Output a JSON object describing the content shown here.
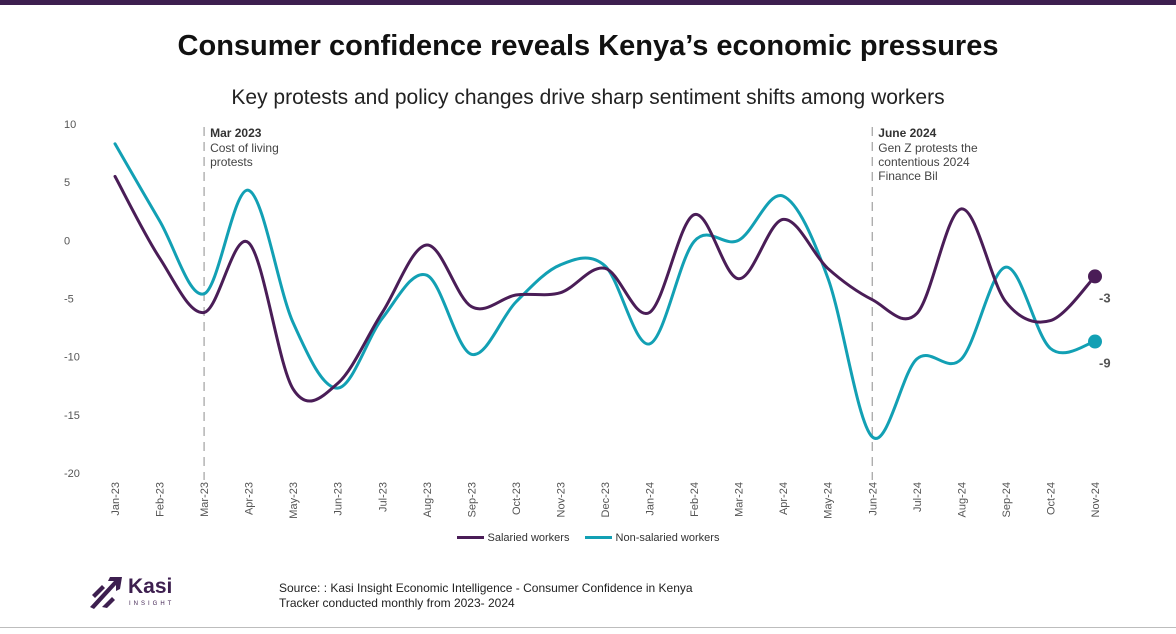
{
  "header": {
    "title": "Consumer confidence reveals Kenya’s economic pressures",
    "subtitle": "Key protests and policy changes drive sharp sentiment shifts among workers"
  },
  "chart_data": {
    "type": "line",
    "title": "Consumer confidence reveals Kenya’s economic pressures",
    "subtitle": "Key protests and policy changes drive sharp sentiment shifts among workers",
    "xlabel": "",
    "ylabel": "",
    "ylim": [
      -20,
      10
    ],
    "yticks": [
      10,
      5,
      0,
      -5,
      -10,
      -15,
      -20
    ],
    "categories": [
      "Jan-23",
      "Feb-23",
      "Mar-23",
      "Apr-23",
      "May-23",
      "Jun-23",
      "Jul-23",
      "Aug-23",
      "Sep-23",
      "Oct-23",
      "Nov-23",
      "Dec-23",
      "Jan-24",
      "Feb-24",
      "Mar-24",
      "Apr-24",
      "May-24",
      "Jun-24",
      "Jul-24",
      "Aug-24",
      "Sep-24",
      "Oct-24",
      "Nov-24"
    ],
    "series": [
      {
        "name": "Salaried workers",
        "color": "#4a1d57",
        "values": [
          5.5,
          -1.5,
          -6.2,
          -0.2,
          -12.8,
          -12.3,
          -6.2,
          -0.4,
          -5.7,
          -4.7,
          -4.5,
          -2.4,
          -6.2,
          2.2,
          -3.3,
          1.8,
          -2.4,
          -5.1,
          -6.3,
          2.7,
          -5.3,
          -6.9,
          -3.1
        ],
        "end_label": "-3"
      },
      {
        "name": "Non-salaried workers",
        "color": "#12a0b4",
        "values": [
          8.3,
          1.7,
          -4.6,
          4.3,
          -7.1,
          -12.7,
          -6.7,
          -3.0,
          -9.8,
          -5.3,
          -2.1,
          -2.2,
          -8.9,
          -0.1,
          0.0,
          3.8,
          -3.2,
          -16.9,
          -10.2,
          -10.2,
          -2.3,
          -9.3,
          -8.7
        ],
        "end_label": "-9"
      }
    ],
    "annotations": [
      {
        "category": "Mar-23",
        "title": "Mar 2023",
        "lines": [
          "Cost of living",
          "protests"
        ]
      },
      {
        "category": "Jun-24",
        "title": "June 2024",
        "lines": [
          "Gen Z protests the",
          "contentious 2024",
          "Finance Bil"
        ]
      }
    ],
    "legend": "bottom-center",
    "grid": false
  },
  "logo": {
    "word": "Kasi",
    "sub": "INSIGHT"
  },
  "source": {
    "line1": "Source: : Kasi Insight Economic Intelligence - Consumer Confidence in Kenya",
    "line2": "Tracker conducted monthly from 2023- 2024"
  }
}
